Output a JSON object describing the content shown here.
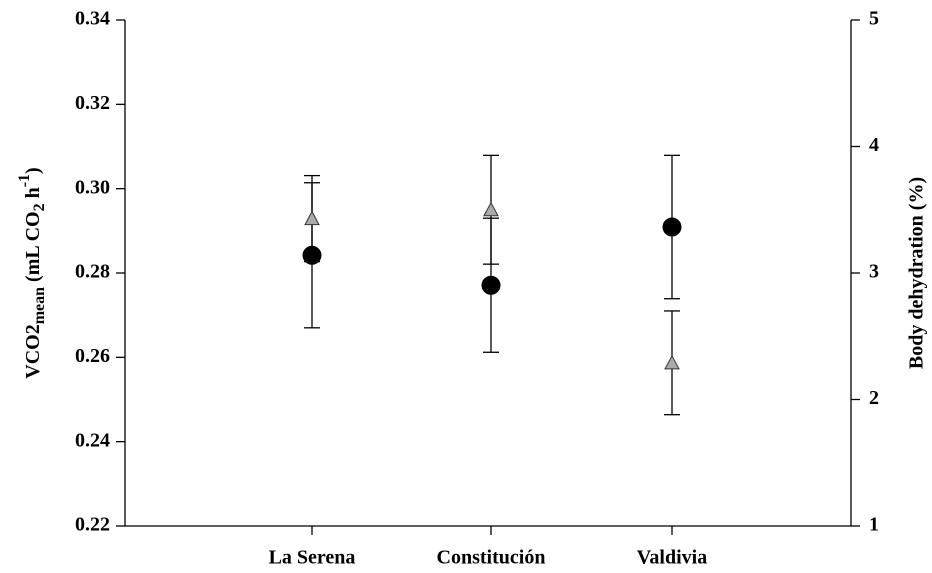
{
  "chart_data": {
    "type": "errorbar",
    "categories": [
      "La Serena",
      "Constitución",
      "Valdivia"
    ],
    "ylabel": [
      "VCO2",
      "mean",
      " (mL CO",
      "2",
      " h",
      "-1",
      ")"
    ],
    "y2label": "Body dehydration (%)",
    "ylim": [
      0.22,
      0.34
    ],
    "yticks": [
      0.22,
      0.24,
      0.26,
      0.28,
      {
        "value": 0.3,
        "label": "0.30"
      },
      0.32,
      0.34
    ],
    "y2lim": [
      1,
      5
    ],
    "y2ticks": [
      1,
      2,
      3,
      4,
      5
    ],
    "series": [
      {
        "marker": "circle",
        "color": "#000000",
        "values": [
          0.2842,
          0.2771,
          0.2909
        ],
        "errors": [
          0.0172,
          0.0159,
          0.017
        ]
      },
      {
        "marker": "triangle",
        "color": "#aaaaaa",
        "axis": "y2",
        "values": [
          3.43,
          3.5,
          2.29
        ],
        "errors": [
          0.34,
          0.43,
          0.41
        ]
      }
    ]
  }
}
